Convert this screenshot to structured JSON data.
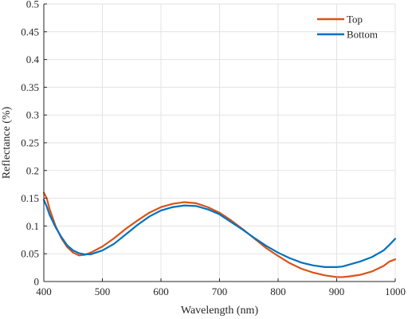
{
  "chart_data": {
    "type": "line",
    "title": "",
    "xlabel": "Wavelength (nm)",
    "ylabel": "Reflectance (%)",
    "xlim": [
      400,
      1000
    ],
    "ylim": [
      0,
      0.5
    ],
    "xticks": [
      400,
      500,
      600,
      700,
      800,
      900,
      1000
    ],
    "xtick_labels": [
      "400",
      "500",
      "600",
      "700",
      "800",
      "900",
      "1000"
    ],
    "yticks": [
      0,
      0.05,
      0.1,
      0.15,
      0.2,
      0.25,
      0.3,
      0.35,
      0.4,
      0.45,
      0.5
    ],
    "ytick_labels": [
      "0",
      "0.05",
      "0.1",
      "0.15",
      "0.2",
      "0.25",
      "0.3",
      "0.35",
      "0.4",
      "0.45",
      "0.5"
    ],
    "grid": true,
    "legend_position": "top-right",
    "series": [
      {
        "name": "Top",
        "color": "#d95319",
        "x": [
          400,
          405,
          410,
          420,
          430,
          440,
          450,
          460,
          470,
          480,
          500,
          520,
          540,
          560,
          580,
          600,
          620,
          640,
          660,
          680,
          700,
          720,
          740,
          760,
          780,
          800,
          820,
          840,
          860,
          880,
          900,
          910,
          920,
          940,
          960,
          980,
          990,
          1000
        ],
        "y": [
          0.16,
          0.15,
          0.13,
          0.1,
          0.078,
          0.062,
          0.052,
          0.047,
          0.048,
          0.052,
          0.063,
          0.078,
          0.095,
          0.11,
          0.124,
          0.134,
          0.14,
          0.143,
          0.141,
          0.134,
          0.124,
          0.11,
          0.094,
          0.077,
          0.06,
          0.046,
          0.033,
          0.023,
          0.016,
          0.011,
          0.008,
          0.008,
          0.009,
          0.012,
          0.018,
          0.028,
          0.036,
          0.04
        ]
      },
      {
        "name": "Bottom",
        "color": "#0072bd",
        "x": [
          400,
          405,
          410,
          420,
          430,
          440,
          450,
          460,
          470,
          480,
          500,
          520,
          540,
          560,
          580,
          600,
          620,
          640,
          660,
          680,
          700,
          720,
          740,
          760,
          780,
          800,
          820,
          840,
          860,
          880,
          900,
          910,
          920,
          940,
          960,
          980,
          990,
          1000
        ],
        "y": [
          0.147,
          0.135,
          0.12,
          0.098,
          0.08,
          0.065,
          0.056,
          0.051,
          0.049,
          0.049,
          0.056,
          0.068,
          0.085,
          0.102,
          0.117,
          0.128,
          0.134,
          0.137,
          0.136,
          0.13,
          0.121,
          0.107,
          0.093,
          0.078,
          0.064,
          0.052,
          0.042,
          0.034,
          0.029,
          0.026,
          0.026,
          0.027,
          0.03,
          0.036,
          0.044,
          0.056,
          0.066,
          0.077
        ]
      }
    ]
  }
}
